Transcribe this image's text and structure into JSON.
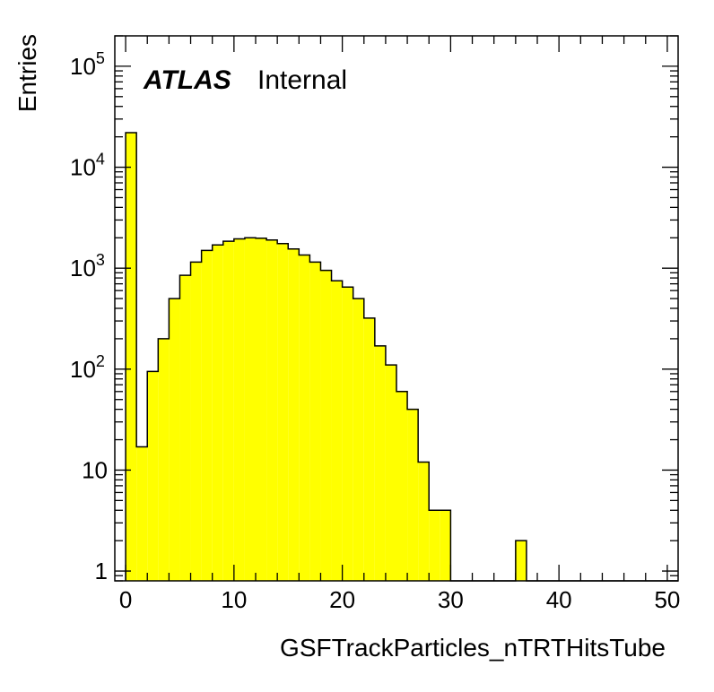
{
  "chart_data": {
    "type": "bar",
    "style": "histogram",
    "title": "",
    "xlabel": "GSFTrackParticles_nTRTHitsTube",
    "ylabel": "Entries",
    "yscale": "log",
    "xlim": [
      -1,
      51
    ],
    "ylim": [
      0.8,
      200000
    ],
    "x_ticks": [
      "0",
      "10",
      "20",
      "30",
      "40",
      "50"
    ],
    "y_ticks": [
      {
        "value": 1,
        "base": "1",
        "exp": ""
      },
      {
        "value": 10,
        "base": "10",
        "exp": ""
      },
      {
        "value": 100,
        "base": "10",
        "exp": "2"
      },
      {
        "value": 1000,
        "base": "10",
        "exp": "3"
      },
      {
        "value": 10000,
        "base": "10",
        "exp": "4"
      },
      {
        "value": 100000,
        "base": "10",
        "exp": "5"
      }
    ],
    "bin_edges_start": 0,
    "bin_width": 1,
    "values": [
      22000,
      17,
      95,
      200,
      500,
      850,
      1150,
      1500,
      1700,
      1850,
      1950,
      2000,
      1980,
      1900,
      1750,
      1550,
      1350,
      1150,
      950,
      750,
      650,
      500,
      320,
      170,
      110,
      60,
      40,
      12,
      4,
      4,
      0,
      0,
      0,
      0,
      0,
      0,
      2,
      0,
      0,
      0,
      0,
      0,
      0,
      0,
      0,
      0,
      0,
      0,
      0,
      0,
      0
    ],
    "fill_color": "#ffff00",
    "line_color": "#000000",
    "annotations": {
      "experiment": "ATLAS",
      "status": "Internal"
    },
    "grid": false,
    "legend": "none"
  }
}
